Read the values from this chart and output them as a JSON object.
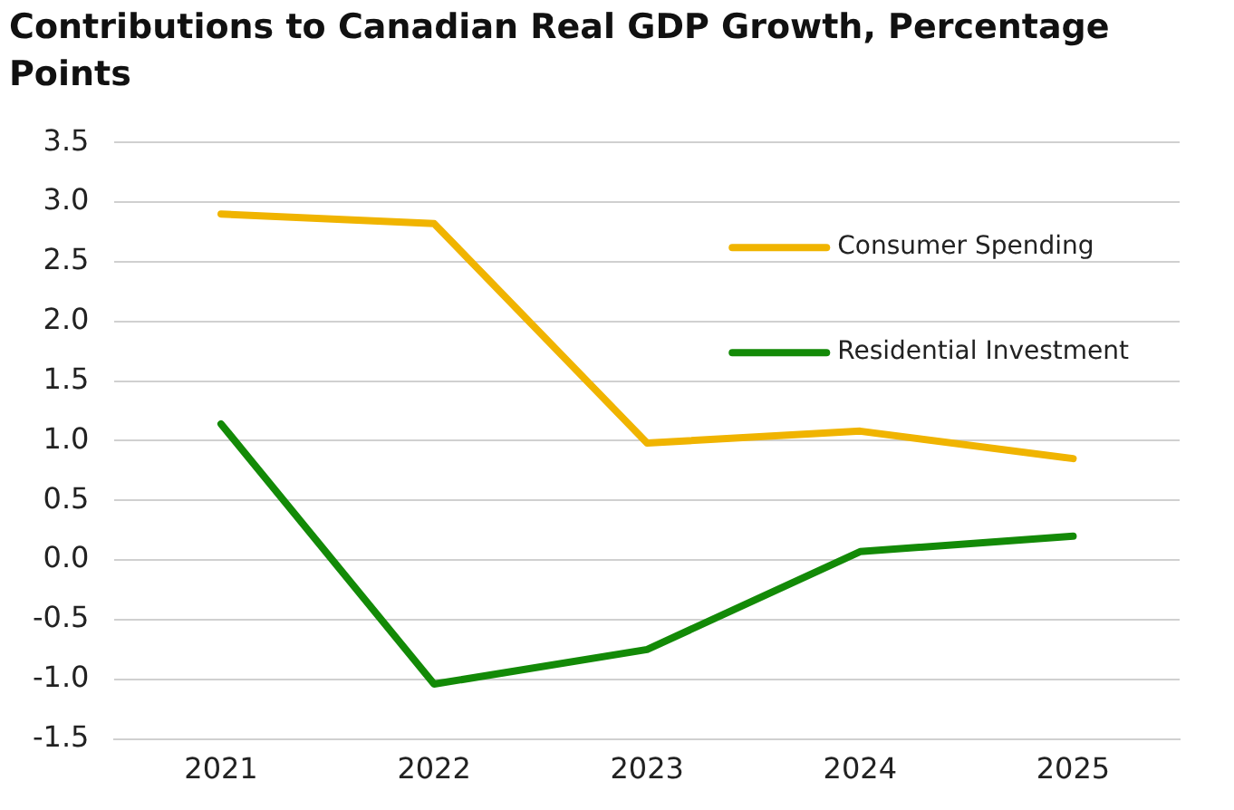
{
  "chart_data": {
    "type": "line",
    "title": "Contributions to Canadian Real GDP Growth, Percentage Points",
    "categories": [
      "2021",
      "2022",
      "2023",
      "2024",
      "2025"
    ],
    "series": [
      {
        "name": "Consumer Spending",
        "color": "#f0b400",
        "values": [
          2.9,
          2.82,
          0.98,
          1.08,
          0.85
        ]
      },
      {
        "name": "Residential Investment",
        "color": "#138a07",
        "values": [
          1.14,
          -1.04,
          -0.75,
          0.07,
          0.2
        ]
      }
    ],
    "ylim": [
      -1.5,
      3.5
    ],
    "yticks": [
      {
        "value": -1.5,
        "label": "-1.5"
      },
      {
        "value": -1,
        "label": "-1.0"
      },
      {
        "value": -0.5,
        "label": "-0.5"
      },
      {
        "value": 0,
        "label": "0.0"
      },
      {
        "value": 0.5,
        "label": "0.5"
      },
      {
        "value": 1,
        "label": "1.0"
      },
      {
        "value": 1.5,
        "label": "1.5"
      },
      {
        "value": 2,
        "label": "2.0"
      },
      {
        "value": 2.5,
        "label": "2.5"
      },
      {
        "value": 3,
        "label": "3.0"
      },
      {
        "value": 3.5,
        "label": "3.5"
      }
    ],
    "grid": "y",
    "legend": "top right",
    "marker": "none",
    "line_style": "solid"
  }
}
